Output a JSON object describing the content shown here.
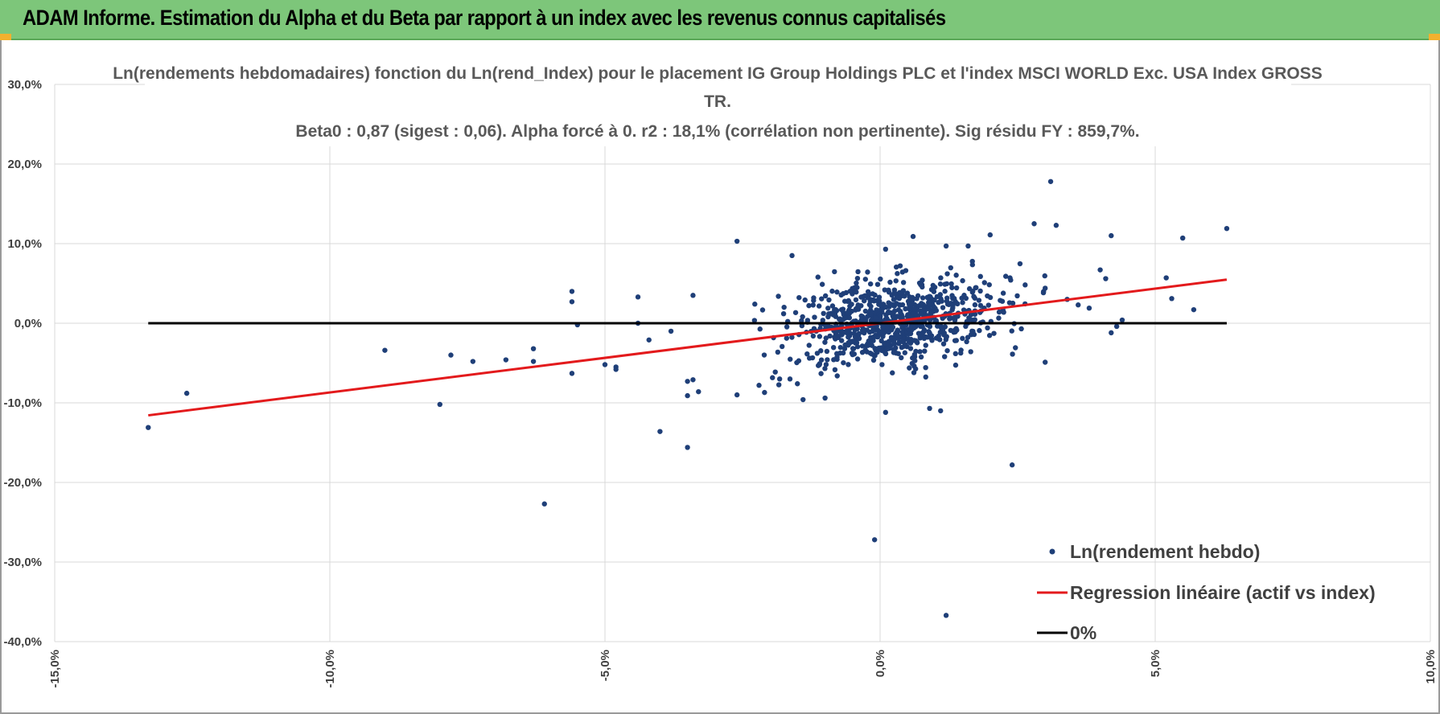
{
  "header": {
    "title": "ADAM Informe. Estimation du Alpha et du Beta par rapport à un index avec les revenus connus capitalisés"
  },
  "colors": {
    "header_bg": "#7dc67a",
    "points": "#1f3f78",
    "regression": "#e31a1c",
    "zero_line": "#000000",
    "grid": "#d9d9d9"
  },
  "chart_data": {
    "type": "scatter",
    "title": [
      "Ln(rendements hebdomadaires) fonction du Ln(rend_Index) pour le placement IG Group Holdings PLC et l'index MSCI WORLD Exc. USA Index GROSS",
      "TR.",
      "Beta0 : 0,87 (sigest : 0,06).  Alpha forcé à 0. r2 : 18,1% (corrélation non pertinente). Sig résidu FY : 859,7%."
    ],
    "xlim": [
      -0.15,
      0.1
    ],
    "ylim": [
      -0.4,
      0.3
    ],
    "x_ticks": [
      -0.15,
      -0.1,
      -0.05,
      0.0,
      0.05,
      0.1
    ],
    "x_tick_labels": [
      "-15,0%",
      "-10,0%",
      "-5,0%",
      "0,0%",
      "5,0%",
      "10,0%"
    ],
    "y_ticks": [
      0.3,
      0.2,
      0.1,
      0.0,
      -0.1,
      -0.2,
      -0.3,
      -0.4
    ],
    "y_tick_labels": [
      "30,0%",
      "20,0%",
      "10,0%",
      "0,0%",
      "-10,0%",
      "-20,0%",
      "-30,0%",
      "-40,0%"
    ],
    "grid": true,
    "beta": 0.87,
    "alpha": 0,
    "legend_position": "bottom-right",
    "legend": [
      {
        "label": "Ln(rendement hebdo)",
        "kind": "marker"
      },
      {
        "label": "Regression linéaire (actif vs index)",
        "kind": "line-red"
      },
      {
        "label": "0%",
        "kind": "line-black"
      }
    ],
    "series": [
      {
        "name": "Ln(rendement hebdo)",
        "kind": "scatter",
        "cluster_note": "dense cloud of ~800 weekly points around origin, x in [-0.035, 0.032]",
        "points": [
          [
            -0.133,
            -0.131
          ],
          [
            -0.126,
            -0.088
          ],
          [
            -0.09,
            -0.034
          ],
          [
            -0.08,
            -0.102
          ],
          [
            -0.078,
            -0.04
          ],
          [
            -0.074,
            -0.048
          ],
          [
            -0.068,
            -0.046
          ],
          [
            -0.063,
            -0.032
          ],
          [
            -0.063,
            -0.048
          ],
          [
            -0.061,
            -0.227
          ],
          [
            -0.056,
            0.04
          ],
          [
            -0.056,
            0.027
          ],
          [
            -0.056,
            -0.063
          ],
          [
            -0.055,
            -0.002
          ],
          [
            -0.05,
            -0.052
          ],
          [
            -0.048,
            -0.055
          ],
          [
            -0.048,
            -0.058
          ],
          [
            -0.044,
            0.033
          ],
          [
            -0.044,
            0.0
          ],
          [
            -0.042,
            -0.021
          ],
          [
            -0.04,
            -0.136
          ],
          [
            -0.038,
            -0.01
          ],
          [
            -0.035,
            -0.073
          ],
          [
            -0.035,
            -0.156
          ],
          [
            -0.035,
            -0.091
          ],
          [
            -0.034,
            -0.071
          ],
          [
            -0.034,
            0.035
          ],
          [
            -0.033,
            -0.086
          ],
          [
            -0.026,
            0.103
          ],
          [
            -0.026,
            -0.09
          ],
          [
            -0.022,
            -0.078
          ],
          [
            -0.021,
            -0.087
          ],
          [
            -0.016,
            0.085
          ],
          [
            -0.014,
            -0.096
          ],
          [
            -0.01,
            -0.094
          ],
          [
            -0.001,
            -0.272
          ],
          [
            0.001,
            -0.112
          ],
          [
            0.001,
            0.093
          ],
          [
            0.006,
            0.109
          ],
          [
            0.009,
            -0.107
          ],
          [
            0.011,
            -0.11
          ],
          [
            0.012,
            -0.367
          ],
          [
            0.012,
            0.097
          ],
          [
            0.016,
            0.097
          ],
          [
            0.02,
            0.111
          ],
          [
            0.024,
            -0.178
          ],
          [
            0.028,
            0.125
          ],
          [
            0.03,
            0.044
          ],
          [
            0.031,
            0.178
          ],
          [
            0.032,
            0.123
          ],
          [
            0.03,
            -0.049
          ],
          [
            0.034,
            0.03
          ],
          [
            0.036,
            0.023
          ],
          [
            0.038,
            0.019
          ],
          [
            0.04,
            0.067
          ],
          [
            0.041,
            0.056
          ],
          [
            0.042,
            0.11
          ],
          [
            0.044,
            0.004
          ],
          [
            0.052,
            0.057
          ],
          [
            0.053,
            0.031
          ],
          [
            0.055,
            0.107
          ],
          [
            0.057,
            0.017
          ],
          [
            0.063,
            0.119
          ],
          [
            0.042,
            -0.012
          ],
          [
            0.043,
            -0.004
          ]
        ]
      },
      {
        "name": "Regression linéaire (actif vs index)",
        "kind": "line",
        "x": [
          -0.133,
          0.063
        ]
      },
      {
        "name": "0%",
        "kind": "line",
        "x": [
          -0.133,
          0.063
        ],
        "y": [
          0,
          0
        ]
      }
    ]
  }
}
